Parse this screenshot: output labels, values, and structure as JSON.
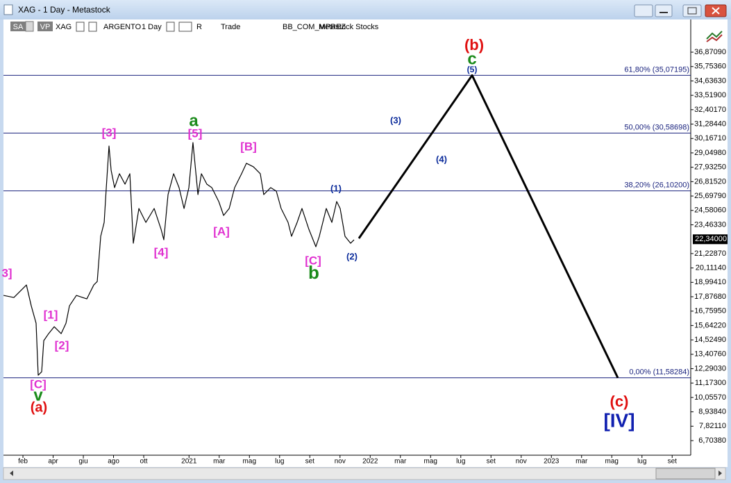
{
  "window": {
    "title": "XAG - 1 Day - Metastock",
    "toolbar": [
      "SA",
      "VP",
      "XAG",
      "ARGENTO",
      "1 Day",
      "R",
      "Trade",
      "BB_COM_MPREZ",
      "Metastock Stocks"
    ]
  },
  "chart_data": {
    "type": "line",
    "xlim": [
      -0.29,
      45.23
    ],
    "ylim": [
      5.57,
      39.41
    ],
    "xticks": [
      {
        "value": 1,
        "label": "feb"
      },
      {
        "value": 3,
        "label": "apr"
      },
      {
        "value": 5,
        "label": "giu"
      },
      {
        "value": 7,
        "label": "ago"
      },
      {
        "value": 9,
        "label": "ott"
      },
      {
        "value": 12,
        "label": "2021"
      },
      {
        "value": 14,
        "label": "mar"
      },
      {
        "value": 16,
        "label": "mag"
      },
      {
        "value": 18,
        "label": "lug"
      },
      {
        "value": 20,
        "label": "set"
      },
      {
        "value": 22,
        "label": "nov"
      },
      {
        "value": 24,
        "label": "2022"
      },
      {
        "value": 26,
        "label": "mar"
      },
      {
        "value": 28,
        "label": "mag"
      },
      {
        "value": 30,
        "label": "lug"
      },
      {
        "value": 32,
        "label": "set"
      },
      {
        "value": 34,
        "label": "nov"
      },
      {
        "value": 36,
        "label": "2023"
      },
      {
        "value": 38,
        "label": "mar"
      },
      {
        "value": 40,
        "label": "mag"
      },
      {
        "value": 42,
        "label": "lug"
      },
      {
        "value": 44,
        "label": "set"
      }
    ],
    "yticks": [
      {
        "value": 6.7038,
        "label": "6,70380"
      },
      {
        "value": 7.8211,
        "label": "7,82110"
      },
      {
        "value": 8.9384,
        "label": "8,93840"
      },
      {
        "value": 10.0557,
        "label": "10,05570"
      },
      {
        "value": 11.173,
        "label": "11,17300"
      },
      {
        "value": 12.2903,
        "label": "12,29030"
      },
      {
        "value": 13.4076,
        "label": "13,40760"
      },
      {
        "value": 14.5249,
        "label": "14,52490"
      },
      {
        "value": 15.6422,
        "label": "15,64220"
      },
      {
        "value": 16.7595,
        "label": "16,75950"
      },
      {
        "value": 17.8768,
        "label": "17,87680"
      },
      {
        "value": 18.9941,
        "label": "18,99410"
      },
      {
        "value": 20.1114,
        "label": "20,11140"
      },
      {
        "value": 21.2287,
        "label": "21,22870"
      },
      {
        "value": 23.4633,
        "label": "23,46330"
      },
      {
        "value": 24.5806,
        "label": "24,58060"
      },
      {
        "value": 25.6979,
        "label": "25,69790"
      },
      {
        "value": 26.8152,
        "label": "26,81520"
      },
      {
        "value": 27.9325,
        "label": "27,93250"
      },
      {
        "value": 29.0498,
        "label": "29,04980"
      },
      {
        "value": 30.1671,
        "label": "30,16710"
      },
      {
        "value": 31.2844,
        "label": "31,28440"
      },
      {
        "value": 32.4017,
        "label": "32,40170"
      },
      {
        "value": 33.519,
        "label": "33,51900"
      },
      {
        "value": 34.6363,
        "label": "34,63630"
      },
      {
        "value": 35.7536,
        "label": "35,75360"
      },
      {
        "value": 36.8709,
        "label": "36,87090"
      }
    ],
    "series": [
      {
        "color": "#000000",
        "x": [
          -0.29,
          0.4,
          1.23,
          1.55,
          1.87,
          2.01,
          2.24,
          2.38,
          2.7,
          3.07,
          3.53,
          3.85,
          4.08,
          4.54,
          5.23,
          5.69,
          5.92,
          6.15,
          6.38,
          6.52,
          6.7,
          6.84,
          7.07,
          7.39,
          7.76,
          8.08,
          8.31,
          8.68,
          9.14,
          9.69,
          10.15,
          10.33,
          10.61,
          10.98,
          11.34,
          11.67,
          11.99,
          12.26,
          12.59,
          12.82,
          13.18,
          13.51,
          13.97,
          14.29,
          14.66,
          15.02,
          15.48,
          15.8,
          16.26,
          16.72,
          16.95,
          17.41,
          17.78,
          18.1,
          18.56,
          18.79,
          19.16,
          19.48,
          19.94,
          20.4,
          20.63,
          21.09,
          21.46,
          21.78,
          22.01,
          22.33,
          22.7,
          22.93
        ],
        "values": [
          17.98,
          17.82,
          18.79,
          17.17,
          15.82,
          11.78,
          12.05,
          14.47,
          15.01,
          15.55,
          15.01,
          15.82,
          17.17,
          17.98,
          17.71,
          18.79,
          19.06,
          22.57,
          23.65,
          26.35,
          29.58,
          27.7,
          26.35,
          27.43,
          26.62,
          27.43,
          22.03,
          24.73,
          23.65,
          24.73,
          23.11,
          22.3,
          25.81,
          27.43,
          26.35,
          24.73,
          26.35,
          29.85,
          25.81,
          27.43,
          26.62,
          26.35,
          25.27,
          24.19,
          24.73,
          26.35,
          27.43,
          28.24,
          27.97,
          27.43,
          25.81,
          26.35,
          26.08,
          24.73,
          23.65,
          22.57,
          23.65,
          24.73,
          23.11,
          21.76,
          22.57,
          24.73,
          23.65,
          25.27,
          24.73,
          22.57,
          22.03,
          22.3
        ]
      },
      {
        "color": "#000000",
        "x": [
          23.25,
          30.75,
          40.4
        ],
        "values": [
          22.41,
          35.07,
          11.58
        ]
      }
    ],
    "fib_levels": {
      "color": "#1a237e",
      "levels": [
        {
          "value": 35.07195,
          "label": "61,80% (35,07195)"
        },
        {
          "value": 30.58698,
          "label": "50,00% (30,58698)"
        },
        {
          "value": 26.102,
          "label": "38,20% (26,10200)"
        },
        {
          "value": 11.58284,
          "label": "0,00% (11,58284)"
        }
      ]
    },
    "last_price": {
      "value": 22.34,
      "label": "22,34000"
    },
    "annotations": [
      {
        "text": "(b)",
        "color": "#e01010"
      },
      {
        "text": "c",
        "color": "#1a8a1a"
      },
      {
        "text": "(5)",
        "color": "#0a2a9a"
      },
      {
        "text": "(3)",
        "color": "#0a2a9a"
      },
      {
        "text": "(4)",
        "color": "#0a2a9a"
      },
      {
        "text": "(1)",
        "color": "#0a2a9a"
      },
      {
        "text": "(2)",
        "color": "#0a2a9a"
      },
      {
        "text": "a",
        "color": "#1a8a1a"
      },
      {
        "text": "[5]",
        "color": "#e030d0"
      },
      {
        "text": "[3]",
        "color": "#e030d0"
      },
      {
        "text": "[B]",
        "color": "#e030d0"
      },
      {
        "text": "[A]",
        "color": "#e030d0"
      },
      {
        "text": "[4]",
        "color": "#e030d0"
      },
      {
        "text": "[C]",
        "color": "#e030d0"
      },
      {
        "text": "b",
        "color": "#1a8a1a"
      },
      {
        "text": "3]",
        "color": "#e030d0"
      },
      {
        "text": "[1]",
        "color": "#e030d0"
      },
      {
        "text": "[2]",
        "color": "#e030d0"
      },
      {
        "text": "[C]",
        "color": "#e030d0"
      },
      {
        "text": "v",
        "color": "#1a8a1a"
      },
      {
        "text": "(a)",
        "color": "#e01010"
      },
      {
        "text": "(c)",
        "color": "#e01010"
      },
      {
        "text": "[IV]",
        "color": "#1020b0"
      }
    ]
  }
}
